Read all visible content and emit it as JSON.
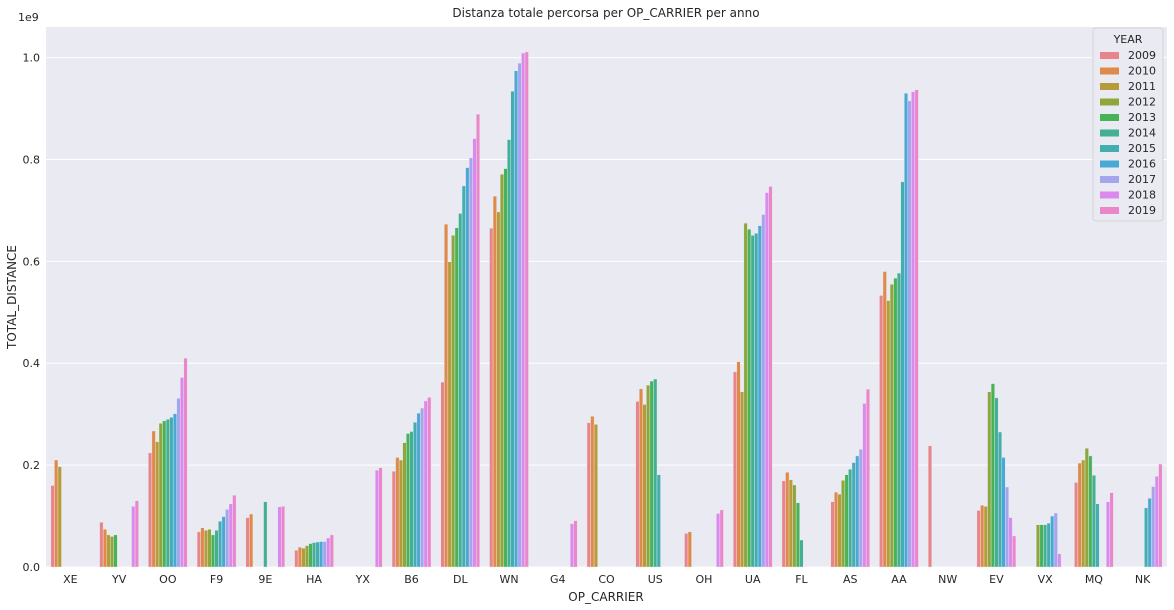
{
  "chart_data": {
    "type": "bar",
    "title": "Distanza totale percorsa per OP_CARRIER per anno",
    "xlabel": "OP_CARRIER",
    "ylabel": "TOTAL_DISTANCE",
    "scale_label": "1e9",
    "ylim": [
      0,
      1.06
    ],
    "yticks": [
      0.0,
      0.2,
      0.4,
      0.6,
      0.8,
      1.0
    ],
    "ytick_labels": [
      "0.0",
      "0.2",
      "0.4",
      "0.6",
      "0.8",
      "1.0"
    ],
    "grid": true,
    "legend": {
      "title": "YEAR",
      "position": "top-right"
    },
    "categories": [
      "XE",
      "YV",
      "OO",
      "F9",
      "9E",
      "HA",
      "YX",
      "B6",
      "DL",
      "WN",
      "G4",
      "CO",
      "US",
      "OH",
      "UA",
      "FL",
      "AS",
      "AA",
      "NW",
      "EV",
      "VX",
      "MQ",
      "NK"
    ],
    "series": [
      {
        "name": "2009",
        "color": "#e8858c",
        "values": [
          0.16,
          0.088,
          0.224,
          0.069,
          0.097,
          0.033,
          null,
          0.188,
          0.363,
          0.665,
          null,
          0.283,
          0.325,
          0.066,
          0.383,
          0.169,
          0.128,
          0.533,
          0.238,
          0.111,
          null,
          0.166,
          null
        ]
      },
      {
        "name": "2010",
        "color": "#df8a4a",
        "values": [
          0.21,
          0.074,
          0.267,
          0.077,
          0.104,
          0.039,
          null,
          0.215,
          0.673,
          0.728,
          null,
          0.296,
          0.35,
          0.069,
          0.403,
          0.186,
          0.147,
          0.58,
          null,
          0.121,
          null,
          0.204,
          null
        ]
      },
      {
        "name": "2011",
        "color": "#b69b3a",
        "values": [
          0.197,
          0.063,
          0.246,
          0.072,
          null,
          0.037,
          null,
          0.21,
          0.599,
          0.697,
          null,
          0.28,
          0.319,
          null,
          0.344,
          0.171,
          0.143,
          0.523,
          null,
          0.119,
          null,
          0.21,
          null
        ]
      },
      {
        "name": "2012",
        "color": "#8ea63c",
        "values": [
          null,
          0.06,
          0.282,
          0.074,
          null,
          0.042,
          null,
          0.244,
          0.651,
          0.771,
          null,
          null,
          0.357,
          null,
          0.675,
          0.161,
          0.17,
          0.555,
          null,
          0.344,
          0.083,
          0.233,
          null
        ]
      },
      {
        "name": "2013",
        "color": "#48b257",
        "values": [
          null,
          0.063,
          0.287,
          0.063,
          null,
          0.046,
          null,
          0.262,
          0.666,
          0.782,
          null,
          null,
          0.365,
          null,
          0.663,
          0.126,
          0.181,
          0.567,
          null,
          0.36,
          0.083,
          0.218,
          null
        ]
      },
      {
        "name": "2014",
        "color": "#43b096",
        "values": [
          null,
          null,
          0.29,
          0.072,
          0.128,
          0.048,
          null,
          0.266,
          0.694,
          0.839,
          null,
          null,
          0.369,
          null,
          0.651,
          0.053,
          0.192,
          0.577,
          null,
          0.332,
          0.083,
          0.18,
          null
        ]
      },
      {
        "name": "2015",
        "color": "#44adb0",
        "values": [
          null,
          null,
          0.294,
          0.09,
          null,
          0.049,
          null,
          0.284,
          0.748,
          0.934,
          null,
          null,
          0.181,
          null,
          0.655,
          null,
          0.205,
          0.756,
          null,
          0.265,
          0.086,
          0.124,
          0.116
        ]
      },
      {
        "name": "2016",
        "color": "#4aa8d5",
        "values": [
          null,
          null,
          0.301,
          0.099,
          null,
          0.05,
          null,
          0.302,
          0.784,
          0.974,
          null,
          null,
          null,
          null,
          0.67,
          null,
          0.218,
          0.93,
          null,
          0.215,
          0.1,
          null,
          0.135
        ]
      },
      {
        "name": "2017",
        "color": "#a3a6ea",
        "values": [
          null,
          null,
          0.331,
          0.113,
          null,
          0.05,
          null,
          0.312,
          0.803,
          0.989,
          null,
          null,
          null,
          null,
          0.692,
          null,
          0.231,
          0.915,
          null,
          0.157,
          0.106,
          null,
          0.158
        ]
      },
      {
        "name": "2018",
        "color": "#da8aee",
        "values": [
          null,
          0.119,
          0.372,
          0.124,
          0.118,
          0.057,
          0.19,
          0.326,
          0.841,
          1.009,
          0.085,
          null,
          null,
          0.105,
          0.735,
          null,
          0.321,
          0.933,
          null,
          0.097,
          0.026,
          0.128,
          0.178
        ]
      },
      {
        "name": "2019",
        "color": "#ea87cb",
        "values": [
          null,
          0.13,
          0.41,
          0.141,
          0.119,
          0.063,
          0.195,
          0.333,
          0.889,
          1.011,
          0.091,
          null,
          null,
          0.112,
          0.747,
          null,
          0.349,
          0.937,
          null,
          0.061,
          null,
          0.146,
          0.202
        ]
      }
    ]
  }
}
